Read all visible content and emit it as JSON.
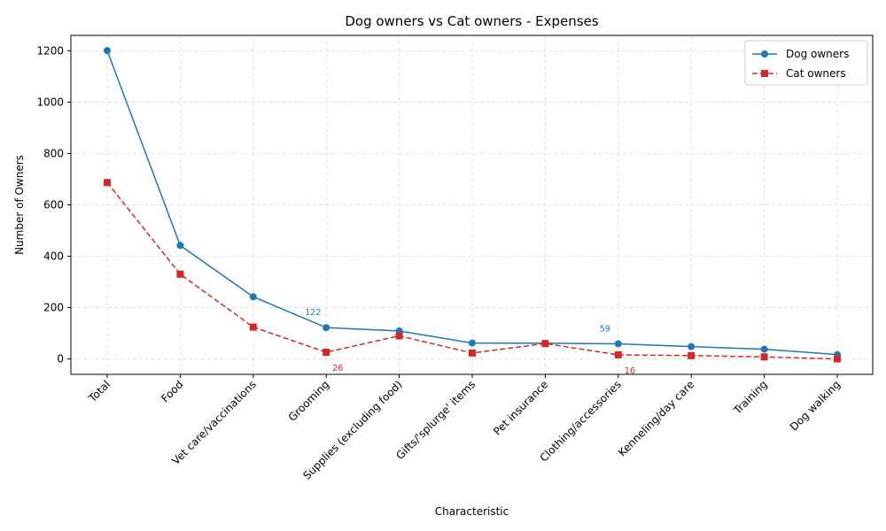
{
  "chart_data": {
    "type": "line",
    "title": "Dog owners vs Cat owners - Expenses",
    "xlabel": "Characteristic",
    "ylabel": "Number of Owners",
    "categories": [
      "Total",
      "Food",
      "Vet care/vaccinations",
      "Grooming",
      "Supplies (excluding food)",
      "Gifts/'splurge' items",
      "Pet insurance",
      "Clothing/accessories",
      "Kenneling/day care",
      "Training",
      "Dog walking"
    ],
    "series": [
      {
        "name": "Dog owners",
        "values": [
          1201,
          442,
          242,
          122,
          109,
          62,
          61,
          59,
          48,
          38,
          17
        ],
        "color": "#1f77b4",
        "marker": "circle",
        "linestyle": "solid"
      },
      {
        "name": "Cat owners",
        "values": [
          687,
          330,
          124,
          26,
          90,
          23,
          60,
          16,
          13,
          8,
          0
        ],
        "color": "#d62728",
        "marker": "square",
        "linestyle": "dashed"
      }
    ],
    "annotations": [
      {
        "series": 0,
        "index": 3,
        "text": "122"
      },
      {
        "series": 0,
        "index": 7,
        "text": "59"
      },
      {
        "series": 1,
        "index": 3,
        "text": "26"
      },
      {
        "series": 1,
        "index": 7,
        "text": "16"
      }
    ],
    "ylim": [
      -60,
      1260
    ],
    "yticks": [
      0,
      200,
      400,
      600,
      800,
      1000,
      1200
    ],
    "grid": true,
    "legend_position": "top-right"
  }
}
